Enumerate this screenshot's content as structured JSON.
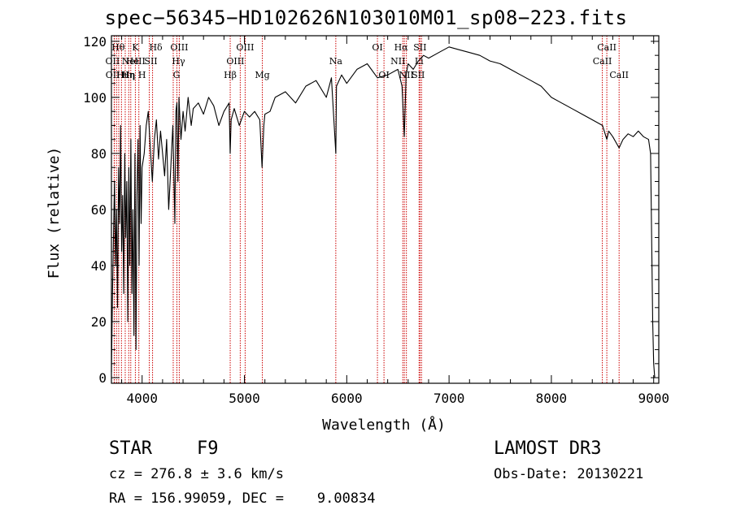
{
  "chart_data": {
    "type": "line",
    "title": "spec−56345−HD102626N103010M01_sp08−223.fits",
    "xlabel": "Wavelength (Å)",
    "ylabel": "Flux (relative)",
    "xlim": [
      3700,
      9050
    ],
    "ylim": [
      -2,
      122
    ],
    "xticks": [
      4000,
      5000,
      6000,
      7000,
      8000,
      9000
    ],
    "yticks": [
      0,
      20,
      40,
      60,
      80,
      100,
      120
    ],
    "series": [
      {
        "name": "flux",
        "x": [
          3700,
          3710,
          3720,
          3730,
          3740,
          3750,
          3760,
          3770,
          3780,
          3790,
          3800,
          3810,
          3820,
          3830,
          3840,
          3850,
          3860,
          3870,
          3880,
          3890,
          3900,
          3910,
          3920,
          3930,
          3940,
          3950,
          3960,
          3970,
          3980,
          3990,
          4000,
          4020,
          4040,
          4060,
          4080,
          4100,
          4120,
          4140,
          4160,
          4180,
          4200,
          4220,
          4240,
          4260,
          4280,
          4300,
          4320,
          4330,
          4340,
          4350,
          4360,
          4380,
          4400,
          4420,
          4450,
          4480,
          4500,
          4550,
          4600,
          4650,
          4700,
          4750,
          4800,
          4850,
          4861,
          4870,
          4900,
          4950,
          5000,
          5050,
          5100,
          5150,
          5172,
          5190,
          5200,
          5250,
          5300,
          5400,
          5500,
          5600,
          5700,
          5800,
          5850,
          5893,
          5900,
          5950,
          6000,
          6100,
          6200,
          6300,
          6400,
          6500,
          6540,
          6563,
          6580,
          6600,
          6650,
          6700,
          6750,
          6800,
          6900,
          7000,
          7100,
          7200,
          7300,
          7400,
          7500,
          7600,
          7700,
          7800,
          7900,
          8000,
          8100,
          8200,
          8300,
          8400,
          8500,
          8542,
          8560,
          8600,
          8662,
          8700,
          8750,
          8800,
          8850,
          8900,
          8950,
          8970,
          8980,
          8990,
          9000,
          9010
        ],
        "y": [
          2,
          30,
          50,
          70,
          40,
          60,
          25,
          75,
          55,
          90,
          45,
          65,
          30,
          80,
          50,
          70,
          20,
          75,
          40,
          85,
          30,
          60,
          15,
          80,
          10,
          65,
          85,
          40,
          90,
          55,
          75,
          80,
          90,
          95,
          82,
          70,
          85,
          92,
          78,
          88,
          80,
          72,
          85,
          60,
          75,
          90,
          55,
          95,
          98,
          70,
          100,
          85,
          95,
          88,
          100,
          90,
          96,
          98,
          94,
          100,
          97,
          90,
          95,
          98,
          80,
          92,
          96,
          90,
          95,
          93,
          95,
          92,
          75,
          90,
          94,
          95,
          100,
          102,
          98,
          104,
          106,
          100,
          107,
          80,
          104,
          108,
          105,
          110,
          112,
          107,
          108,
          110,
          104,
          86,
          108,
          112,
          110,
          113,
          115,
          114,
          116,
          118,
          117,
          116,
          115,
          113,
          112,
          110,
          108,
          106,
          104,
          100,
          98,
          96,
          94,
          92,
          90,
          85,
          88,
          86,
          82,
          85,
          87,
          86,
          88,
          86,
          85,
          80,
          50,
          20,
          5,
          0
        ]
      }
    ],
    "lines": [
      {
        "w": 3727,
        "label": "OII",
        "row": 2,
        "dx": -2
      },
      {
        "w": 3729,
        "label": "OII",
        "row": 3,
        "dx": -2
      },
      {
        "w": 3750,
        "label": "Hθ",
        "row": 1,
        "dx": 2
      },
      {
        "w": 3771,
        "label": "Hι",
        "row": 3,
        "dx": 4
      },
      {
        "w": 3798,
        "label": "Hη",
        "row": 3,
        "dx": 8
      },
      {
        "w": 3835,
        "label": "Hη",
        "row": 3,
        "dx": 4
      },
      {
        "w": 3869,
        "label": "NeIII",
        "row": 2,
        "dx": 6
      },
      {
        "w": 3889,
        "label": "He",
        "row": 2,
        "dx": 2
      },
      {
        "w": 3934,
        "label": "K",
        "row": 1,
        "dx": 0
      },
      {
        "w": 3968,
        "label": "H",
        "row": 3,
        "dx": 4
      },
      {
        "w": 4070,
        "label": "SII",
        "row": 2,
        "dx": 2
      },
      {
        "w": 4102,
        "label": "Hδ",
        "row": 1,
        "dx": 4
      },
      {
        "w": 4304,
        "label": "G",
        "row": 3,
        "dx": 4
      },
      {
        "w": 4340,
        "label": "Hγ",
        "row": 2,
        "dx": 2
      },
      {
        "w": 4363,
        "label": "OIII",
        "row": 1,
        "dx": 0
      },
      {
        "w": 4861,
        "label": "Hβ",
        "row": 3,
        "dx": 0
      },
      {
        "w": 4959,
        "label": "OIII",
        "row": 2,
        "dx": -6
      },
      {
        "w": 5007,
        "label": "OIII",
        "row": 1,
        "dx": 0
      },
      {
        "w": 5175,
        "label": "Mg",
        "row": 3,
        "dx": 0
      },
      {
        "w": 5893,
        "label": "Na",
        "row": 2,
        "dx": 0
      },
      {
        "w": 6300,
        "label": "OI",
        "row": 1,
        "dx": 0
      },
      {
        "w": 6364,
        "label": "OI",
        "row": 3,
        "dx": 0
      },
      {
        "w": 6548,
        "label": "NII",
        "row": 2,
        "dx": -6
      },
      {
        "w": 6563,
        "label": "Hα",
        "row": 1,
        "dx": -4
      },
      {
        "w": 6583,
        "label": "NII",
        "row": 3,
        "dx": 0
      },
      {
        "w": 6707,
        "label": "Li",
        "row": 2,
        "dx": 0
      },
      {
        "w": 6716,
        "label": "SII",
        "row": 1,
        "dx": 0
      },
      {
        "w": 6731,
        "label": "SII",
        "row": 3,
        "dx": -4
      },
      {
        "w": 8498,
        "label": "CaII",
        "row": 2,
        "dx": 0
      },
      {
        "w": 8542,
        "label": "CaII",
        "row": 1,
        "dx": 0
      },
      {
        "w": 8662,
        "label": "CaII",
        "row": 3,
        "dx": 0
      }
    ]
  },
  "info": {
    "class": "STAR",
    "subclass": "F9",
    "survey": "LAMOST DR3",
    "cz": "cz = 276.8 ± 3.6 km/s",
    "obs_date": "Obs-Date: 20130221",
    "radec": "RA = 156.99059, DEC =    9.00834"
  }
}
